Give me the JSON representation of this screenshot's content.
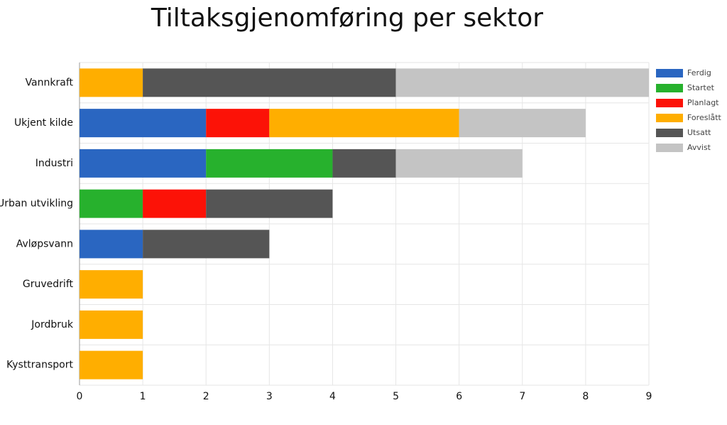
{
  "chart_data": {
    "type": "stacked-bar-horizontal",
    "title": "Tiltaksgjenomføring per sektor",
    "categories": [
      "Vannkraft",
      "Ukjent kilde",
      "Industri",
      "Urban utvikling",
      "Avløpsvann",
      "Gruvedrift",
      "Jordbruk",
      "Kysttransport"
    ],
    "series": [
      {
        "name": "Ferdig",
        "color": "#2a66c1",
        "values": [
          0,
          2,
          2,
          0,
          1,
          0,
          0,
          0
        ]
      },
      {
        "name": "Startet",
        "color": "#27b12d",
        "values": [
          0,
          0,
          2,
          1,
          0,
          0,
          0,
          0
        ]
      },
      {
        "name": "Planlagt",
        "color": "#fc1207",
        "values": [
          0,
          1,
          0,
          1,
          0,
          0,
          0,
          0
        ]
      },
      {
        "name": "Foreslått",
        "color": "#ffae00",
        "values": [
          1,
          3,
          0,
          0,
          0,
          1,
          1,
          1
        ]
      },
      {
        "name": "Utsatt",
        "color": "#555555",
        "values": [
          4,
          0,
          1,
          2,
          2,
          0,
          0,
          0
        ]
      },
      {
        "name": "Avvist",
        "color": "#c4c4c4",
        "values": [
          4,
          2,
          2,
          0,
          0,
          0,
          0,
          0
        ]
      }
    ],
    "xlim": [
      0,
      9
    ],
    "xticks": [
      0,
      1,
      2,
      3,
      4,
      5,
      6,
      7,
      8,
      9
    ],
    "grid": true,
    "legend": "right"
  }
}
